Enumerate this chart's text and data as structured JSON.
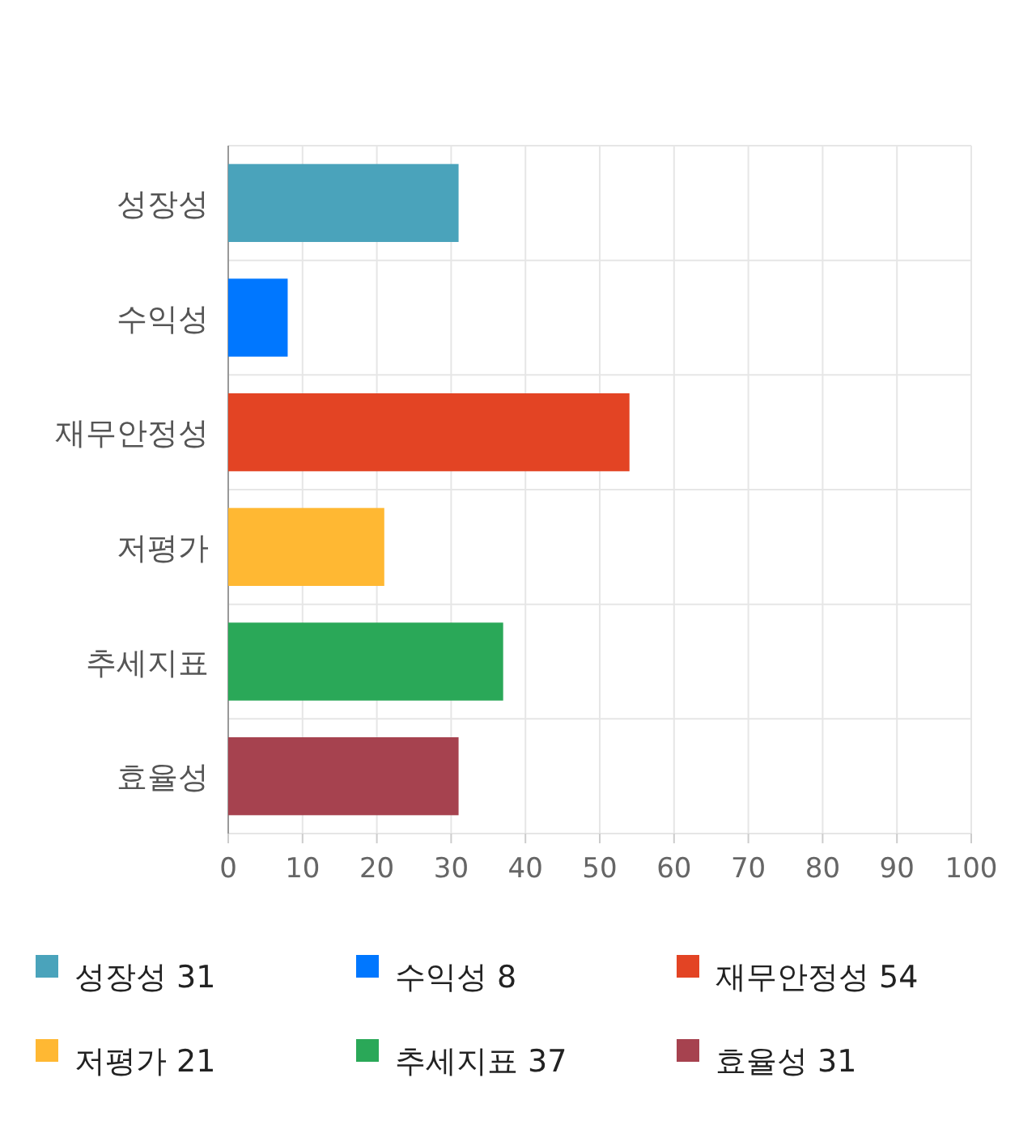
{
  "chart_data": {
    "type": "bar",
    "orientation": "horizontal",
    "stacked": true,
    "categories": [
      "성장성",
      "수익성",
      "재무안정성",
      "저평가",
      "추세지표",
      "효율성"
    ],
    "series": [
      {
        "name": "성장성 31",
        "color": "#4aa3bb",
        "values": [
          31,
          null,
          null,
          null,
          null,
          null
        ]
      },
      {
        "name": "수익성 8",
        "color": "#0077ff",
        "values": [
          null,
          8,
          null,
          null,
          null,
          null
        ]
      },
      {
        "name": "재무안정성 54",
        "color": "#e34424",
        "values": [
          null,
          null,
          54,
          null,
          null,
          null
        ]
      },
      {
        "name": "저평가 21",
        "color": "#ffb833",
        "values": [
          null,
          null,
          null,
          21,
          null,
          null
        ]
      },
      {
        "name": "추세지표 37",
        "color": "#2aa858",
        "values": [
          null,
          null,
          null,
          null,
          37,
          null
        ]
      },
      {
        "name": "효율성 31",
        "color": "#a6424f",
        "values": [
          null,
          null,
          null,
          null,
          null,
          31
        ]
      }
    ],
    "xlim": [
      0,
      100
    ],
    "xticks": [
      0,
      10,
      20,
      30,
      40,
      50,
      60,
      70,
      80,
      90,
      100
    ],
    "grid": true,
    "legend": "bottom"
  }
}
